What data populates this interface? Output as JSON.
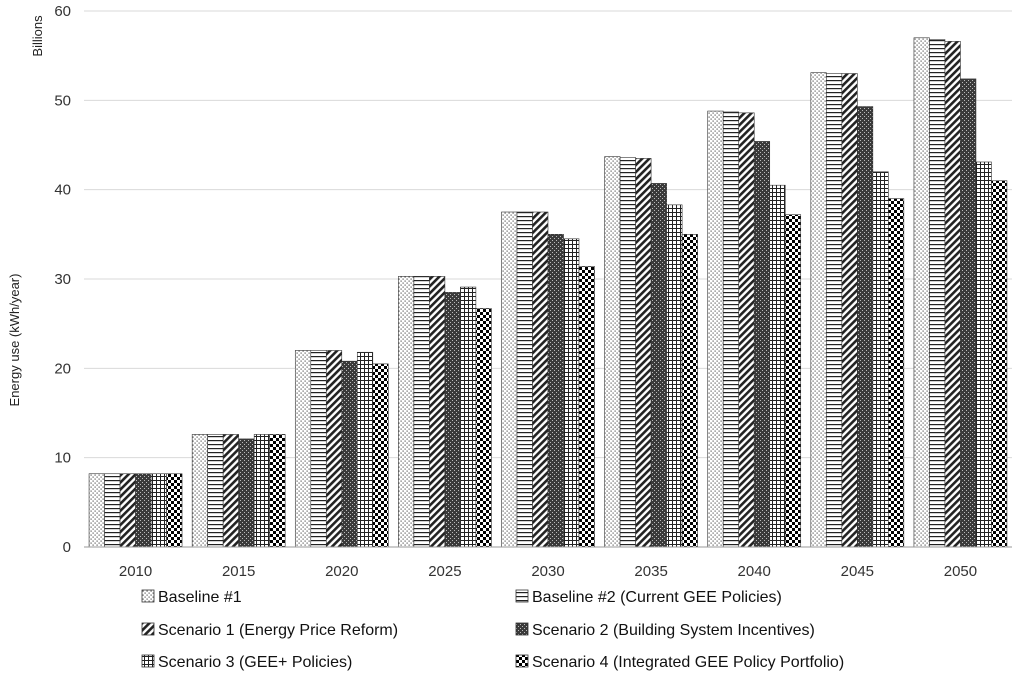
{
  "chart_data": {
    "type": "bar",
    "title": "",
    "ylabel": "Energy use (kWh/year)",
    "yunit_label": "Billions",
    "ylim": [
      0,
      60
    ],
    "yticks": [
      0,
      10,
      20,
      30,
      40,
      50,
      60
    ],
    "grid": true,
    "legend_position": "bottom",
    "categories": [
      "2010",
      "2015",
      "2020",
      "2025",
      "2030",
      "2035",
      "2040",
      "2045",
      "2050"
    ],
    "series": [
      {
        "name": "Baseline #1",
        "pattern": "dots",
        "values": [
          8.2,
          12.6,
          22.0,
          30.3,
          37.5,
          43.7,
          48.8,
          53.1,
          57.0
        ]
      },
      {
        "name": "Baseline #2 (Current GEE Policies)",
        "pattern": "hlines",
        "values": [
          8.2,
          12.6,
          22.0,
          30.3,
          37.5,
          43.6,
          48.7,
          53.0,
          56.8
        ]
      },
      {
        "name": "Scenario 1 (Energy Price Reform)",
        "pattern": "diagonal",
        "values": [
          8.2,
          12.6,
          22.0,
          30.3,
          37.5,
          43.5,
          48.6,
          53.0,
          56.6
        ]
      },
      {
        "name": "Scenario 2 (Building System Incentives)",
        "pattern": "dense",
        "values": [
          8.2,
          12.1,
          20.8,
          28.5,
          35.0,
          40.7,
          45.4,
          49.3,
          52.4
        ]
      },
      {
        "name": "Scenario 3 (GEE+ Policies)",
        "pattern": "grid",
        "values": [
          8.2,
          12.6,
          21.8,
          29.1,
          34.5,
          38.3,
          40.5,
          42.0,
          43.1
        ]
      },
      {
        "name": "Scenario 4 (Integrated GEE Policy Portfolio)",
        "pattern": "checker",
        "values": [
          8.2,
          12.6,
          20.5,
          26.7,
          31.4,
          35.0,
          37.2,
          39.0,
          41.0
        ]
      }
    ]
  }
}
